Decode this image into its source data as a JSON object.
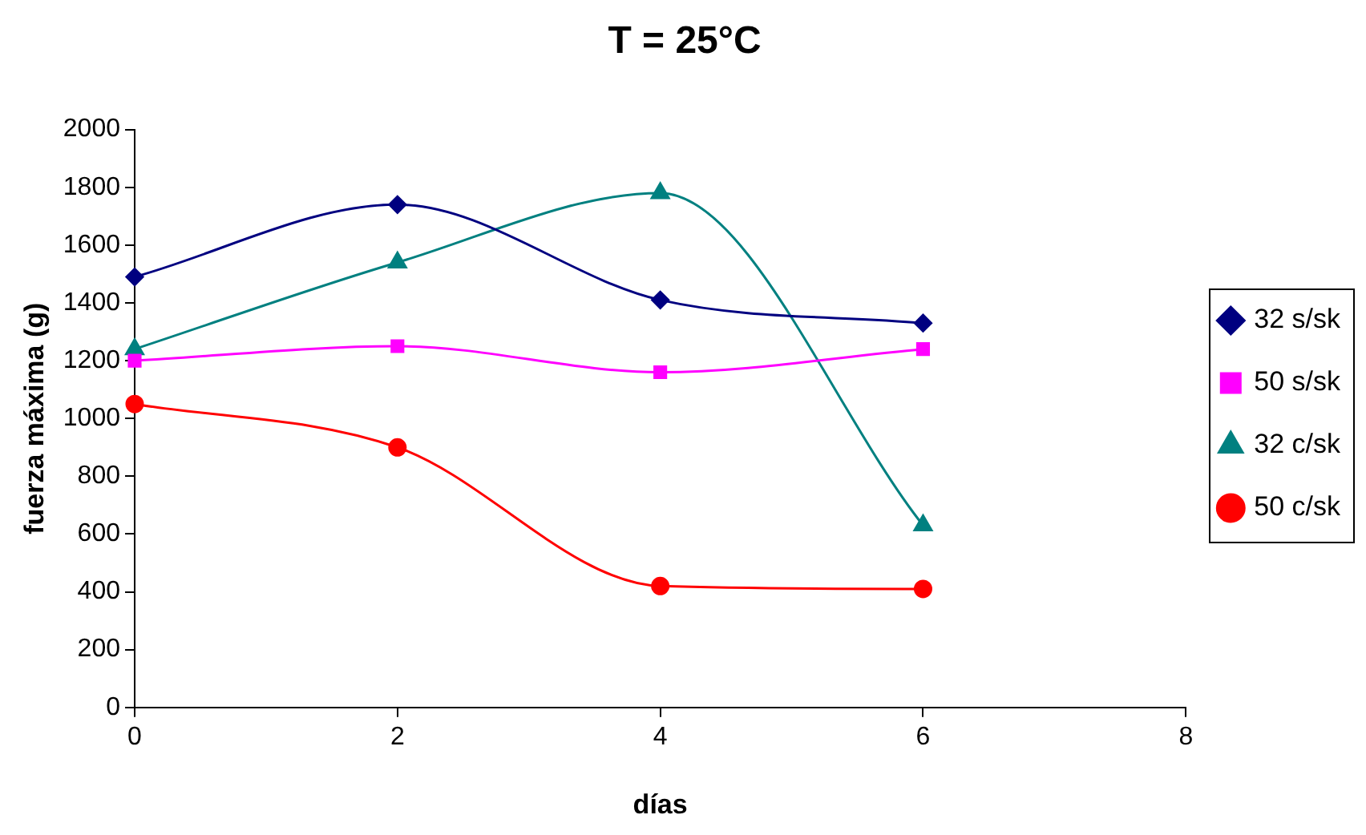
{
  "chart_data": {
    "type": "line",
    "title": "T = 25°C",
    "xlabel": "días",
    "ylabel": "fuerza máxima (g)",
    "x": [
      0,
      2,
      4,
      6
    ],
    "series": [
      {
        "name": "32 s/sk",
        "color": "#000080",
        "marker": "diamond",
        "values": [
          1490,
          1740,
          1410,
          1330
        ]
      },
      {
        "name": "50 s/sk",
        "color": "#ff00ff",
        "marker": "square",
        "values": [
          1200,
          1250,
          1160,
          1240
        ]
      },
      {
        "name": "32 c/sk",
        "color": "#008080",
        "marker": "triangle",
        "values": [
          1240,
          1540,
          1780,
          630
        ]
      },
      {
        "name": "50 c/sk",
        "color": "#ff0000",
        "marker": "circle",
        "values": [
          1050,
          900,
          420,
          410
        ]
      }
    ],
    "xlim": [
      0,
      8
    ],
    "xticks": [
      0,
      2,
      4,
      6,
      8
    ],
    "ylim": [
      0,
      2000
    ],
    "yticks": [
      0,
      200,
      400,
      600,
      800,
      1000,
      1200,
      1400,
      1600,
      1800,
      2000
    ],
    "grid": false,
    "legend": "right"
  }
}
